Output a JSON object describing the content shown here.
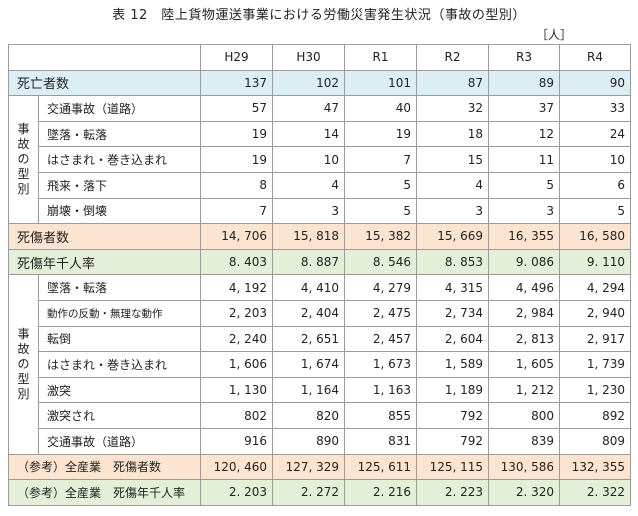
{
  "title": "表 12　陸上貨物運送事業における労働災害発生状況（事故の型別）",
  "unit": "［人］",
  "headers": [
    "H29",
    "H30",
    "R1",
    "R2",
    "R3",
    "R4"
  ],
  "group_label_1": "事故の型別",
  "group_label_2": "事故の型別",
  "deaths": {
    "label": "死亡者数",
    "values": [
      "137",
      "102",
      "101",
      "87",
      "89",
      "90"
    ]
  },
  "death_types": [
    {
      "label": "交通事故（道路）",
      "values": [
        "57",
        "47",
        "40",
        "32",
        "37",
        "33"
      ]
    },
    {
      "label": "墜落・転落",
      "values": [
        "19",
        "14",
        "19",
        "18",
        "12",
        "24"
      ]
    },
    {
      "label": "はさまれ・巻き込まれ",
      "values": [
        "19",
        "10",
        "7",
        "15",
        "11",
        "10"
      ]
    },
    {
      "label": "飛来・落下",
      "values": [
        "8",
        "4",
        "5",
        "4",
        "5",
        "6"
      ]
    },
    {
      "label": "崩壊・倒壊",
      "values": [
        "7",
        "3",
        "5",
        "3",
        "3",
        "5"
      ]
    }
  ],
  "casualties": {
    "label": "死傷者数",
    "values": [
      "14, 706",
      "15, 818",
      "15, 382",
      "15, 669",
      "16, 355",
      "16, 580"
    ]
  },
  "rate": {
    "label": "死傷年千人率",
    "values": [
      "8. 403",
      "8. 887",
      "8. 546",
      "8. 853",
      "9. 086",
      "9. 110"
    ]
  },
  "casualty_types": [
    {
      "label": "墜落・転落",
      "values": [
        "4, 192",
        "4, 410",
        "4, 279",
        "4, 315",
        "4, 496",
        "4, 294"
      ]
    },
    {
      "label": "動作の反動・無理な動作",
      "values": [
        "2, 203",
        "2, 404",
        "2, 475",
        "2, 734",
        "2, 984",
        "2, 940"
      ]
    },
    {
      "label": "転倒",
      "values": [
        "2, 240",
        "2, 651",
        "2, 457",
        "2, 604",
        "2, 813",
        "2, 917"
      ]
    },
    {
      "label": "はさまれ・巻き込まれ",
      "values": [
        "1, 606",
        "1, 674",
        "1, 673",
        "1, 589",
        "1, 605",
        "1, 739"
      ]
    },
    {
      "label": "激突",
      "values": [
        "1, 130",
        "1, 164",
        "1, 163",
        "1, 189",
        "1, 212",
        "1, 230"
      ]
    },
    {
      "label": "激突され",
      "values": [
        "802",
        "820",
        "855",
        "792",
        "800",
        "892"
      ]
    },
    {
      "label": "交通事故（道路）",
      "values": [
        "916",
        "890",
        "831",
        "792",
        "839",
        "809"
      ]
    }
  ],
  "all_industry_casualties": {
    "label": "（参考）全産業　死傷者数",
    "values": [
      "120, 460",
      "127, 329",
      "125, 611",
      "125, 115",
      "130, 586",
      "132, 355"
    ]
  },
  "all_industry_rate": {
    "label": "（参考）全産業　死傷年千人率",
    "values": [
      "2. 203",
      "2. 272",
      "2. 216",
      "2. 223",
      "2. 320",
      "2. 322"
    ]
  },
  "colors": {
    "deaths_row": "#dbeef4",
    "casualties_row": "#fce4d0",
    "rate_row": "#e4efd7"
  }
}
